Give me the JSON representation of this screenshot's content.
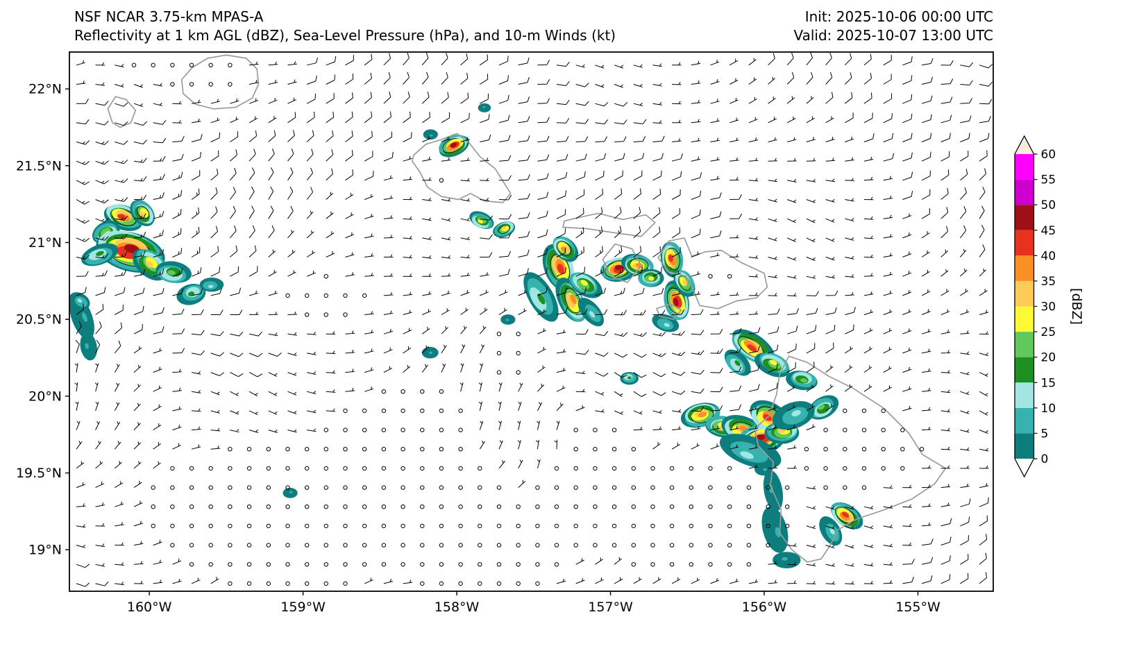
{
  "chart_data": {
    "type": "heatmap",
    "title": "NSF NCAR 3.75-km MPAS-A",
    "subtitle": "Reflectivity at 1 km AGL (dBZ), Sea-Level Pressure (hPa), and 10-m Winds (kt)",
    "init_label": "Init: 2025-10-06 00:00 UTC",
    "valid_label": "Valid: 2025-10-07 13:00 UTC",
    "xlim": [
      -160.52,
      -154.51
    ],
    "ylim": [
      18.73,
      22.24
    ],
    "x_ticks": [
      {
        "value": -160,
        "label": "160°W"
      },
      {
        "value": -159,
        "label": "159°W"
      },
      {
        "value": -158,
        "label": "158°W"
      },
      {
        "value": -157,
        "label": "157°W"
      },
      {
        "value": -156,
        "label": "156°W"
      },
      {
        "value": -155,
        "label": "155°W"
      }
    ],
    "y_ticks": [
      {
        "value": 22,
        "label": "22°N"
      },
      {
        "value": 21.5,
        "label": "21.5°N"
      },
      {
        "value": 21,
        "label": "21°N"
      },
      {
        "value": 20.5,
        "label": "20.5°N"
      },
      {
        "value": 20,
        "label": "20°N"
      },
      {
        "value": 19.5,
        "label": "19.5°N"
      },
      {
        "value": 19,
        "label": "19°N"
      }
    ],
    "coast_color": "#9b9b9b",
    "colorbar": {
      "label": "[dBZ]",
      "tick_values": [
        60,
        55,
        50,
        45,
        40,
        35,
        30,
        25,
        20,
        15,
        10,
        5,
        0
      ],
      "over_color": "#f6ecd9",
      "under_color": "#ffffff",
      "segments": [
        {
          "from": 0,
          "to": 5,
          "color": "#0e7d7d"
        },
        {
          "from": 5,
          "to": 10,
          "color": "#36b3ae"
        },
        {
          "from": 10,
          "to": 15,
          "color": "#a1e6e2"
        },
        {
          "from": 15,
          "to": 20,
          "color": "#1e8f22"
        },
        {
          "from": 20,
          "to": 25,
          "color": "#61c95c"
        },
        {
          "from": 25,
          "to": 30,
          "color": "#fdf935"
        },
        {
          "from": 30,
          "to": 35,
          "color": "#fecb59"
        },
        {
          "from": 35,
          "to": 40,
          "color": "#fb8f24"
        },
        {
          "from": 40,
          "to": 45,
          "color": "#e9311f"
        },
        {
          "from": 45,
          "to": 50,
          "color": "#9f1016"
        },
        {
          "from": 50,
          "to": 55,
          "color": "#cf00cf"
        },
        {
          "from": 55,
          "to": 60,
          "color": "#ff00ff"
        }
      ]
    },
    "islands": {
      "kauai": [
        [
          -159.78,
          21.97
        ],
        [
          -159.79,
          22.06
        ],
        [
          -159.72,
          22.14
        ],
        [
          -159.62,
          22.2
        ],
        [
          -159.5,
          22.22
        ],
        [
          -159.37,
          22.2
        ],
        [
          -159.3,
          22.13
        ],
        [
          -159.29,
          22.03
        ],
        [
          -159.33,
          21.94
        ],
        [
          -159.44,
          21.88
        ],
        [
          -159.58,
          21.87
        ],
        [
          -159.7,
          21.9
        ]
      ],
      "niihau": [
        [
          -160.24,
          21.78
        ],
        [
          -160.27,
          21.87
        ],
        [
          -160.22,
          21.95
        ],
        [
          -160.15,
          21.93
        ],
        [
          -160.09,
          21.86
        ],
        [
          -160.12,
          21.78
        ],
        [
          -160.19,
          21.75
        ]
      ],
      "oahu": [
        [
          -158.28,
          21.57
        ],
        [
          -158.2,
          21.64
        ],
        [
          -158.1,
          21.67
        ],
        [
          -158.0,
          21.71
        ],
        [
          -157.92,
          21.65
        ],
        [
          -157.85,
          21.56
        ],
        [
          -157.75,
          21.48
        ],
        [
          -157.65,
          21.32
        ],
        [
          -157.7,
          21.26
        ],
        [
          -157.82,
          21.27
        ],
        [
          -157.91,
          21.32
        ],
        [
          -157.99,
          21.28
        ],
        [
          -158.1,
          21.3
        ],
        [
          -158.19,
          21.36
        ],
        [
          -158.24,
          21.46
        ],
        [
          -158.29,
          21.53
        ]
      ],
      "molokai": [
        [
          -157.31,
          21.1
        ],
        [
          -157.15,
          21.09
        ],
        [
          -156.95,
          21.06
        ],
        [
          -156.8,
          21.04
        ],
        [
          -156.71,
          21.13
        ],
        [
          -156.77,
          21.18
        ],
        [
          -156.92,
          21.15
        ],
        [
          -157.08,
          21.19
        ],
        [
          -157.22,
          21.16
        ],
        [
          -157.3,
          21.14
        ]
      ],
      "lanai": [
        [
          -157.05,
          20.89
        ],
        [
          -156.97,
          20.99
        ],
        [
          -156.86,
          20.96
        ],
        [
          -156.8,
          20.85
        ],
        [
          -156.89,
          20.74
        ],
        [
          -157.0,
          20.78
        ]
      ],
      "kahoolawe": [
        [
          -156.7,
          20.57
        ],
        [
          -156.61,
          20.6
        ],
        [
          -156.54,
          20.56
        ],
        [
          -156.59,
          20.5
        ],
        [
          -156.68,
          20.52
        ]
      ],
      "maui": [
        [
          -156.69,
          20.9
        ],
        [
          -156.62,
          21.01
        ],
        [
          -156.52,
          21.03
        ],
        [
          -156.47,
          20.91
        ],
        [
          -156.38,
          20.94
        ],
        [
          -156.28,
          20.95
        ],
        [
          -156.15,
          20.87
        ],
        [
          -156.0,
          20.8
        ],
        [
          -155.98,
          20.71
        ],
        [
          -156.05,
          20.64
        ],
        [
          -156.18,
          20.62
        ],
        [
          -156.3,
          20.57
        ],
        [
          -156.42,
          20.59
        ],
        [
          -156.46,
          20.69
        ],
        [
          -156.51,
          20.78
        ],
        [
          -156.62,
          20.81
        ]
      ],
      "big_island": [
        [
          -155.84,
          20.26
        ],
        [
          -155.72,
          20.22
        ],
        [
          -155.58,
          20.13
        ],
        [
          -155.42,
          20.05
        ],
        [
          -155.22,
          19.92
        ],
        [
          -155.06,
          19.76
        ],
        [
          -154.97,
          19.62
        ],
        [
          -154.82,
          19.53
        ],
        [
          -154.89,
          19.43
        ],
        [
          -155.04,
          19.33
        ],
        [
          -155.22,
          19.26
        ],
        [
          -155.4,
          19.2
        ],
        [
          -155.52,
          19.13
        ],
        [
          -155.57,
          19.03
        ],
        [
          -155.63,
          18.94
        ],
        [
          -155.72,
          18.92
        ],
        [
          -155.82,
          19.0
        ],
        [
          -155.9,
          19.11
        ],
        [
          -155.89,
          19.26
        ],
        [
          -155.96,
          19.42
        ],
        [
          -155.94,
          19.57
        ],
        [
          -156.04,
          19.68
        ],
        [
          -156.06,
          19.79
        ],
        [
          -155.97,
          19.87
        ],
        [
          -155.92,
          20.01
        ],
        [
          -155.9,
          20.14
        ]
      ]
    },
    "storm_cells": [
      {
        "lon": -160.17,
        "lat": 21.17,
        "dbz": 43,
        "size": 0.1,
        "elong": 1.3,
        "angle": 20
      },
      {
        "lon": -160.28,
        "lat": 21.06,
        "dbz": 30,
        "size": 0.08,
        "elong": 1.2,
        "angle": -30
      },
      {
        "lon": -160.13,
        "lat": 20.95,
        "dbz": 48,
        "size": 0.17,
        "elong": 1.35,
        "angle": 15
      },
      {
        "lon": -160.04,
        "lat": 21.19,
        "dbz": 35,
        "size": 0.08,
        "elong": 1.2,
        "angle": 50
      },
      {
        "lon": -160.33,
        "lat": 20.92,
        "dbz": 18,
        "size": 0.09,
        "elong": 1.4,
        "angle": -20
      },
      {
        "lon": -159.99,
        "lat": 20.86,
        "dbz": 32,
        "size": 0.1,
        "elong": 1.3,
        "angle": 40
      },
      {
        "lon": -159.85,
        "lat": 20.8,
        "dbz": 24,
        "size": 0.09,
        "elong": 1.3,
        "angle": 10
      },
      {
        "lon": -159.72,
        "lat": 20.67,
        "dbz": 20,
        "size": 0.08,
        "elong": 1.2,
        "angle": -15
      },
      {
        "lon": -159.6,
        "lat": 20.72,
        "dbz": 12,
        "size": 0.06,
        "elong": 1.3,
        "angle": 0
      },
      {
        "lon": -160.43,
        "lat": 20.52,
        "dbz": 9,
        "size": 0.1,
        "elong": 1.5,
        "angle": 70
      },
      {
        "lon": -160.4,
        "lat": 20.32,
        "dbz": 8,
        "size": 0.07,
        "elong": 1.3,
        "angle": 80
      },
      {
        "lon": -160.45,
        "lat": 20.62,
        "dbz": 12,
        "size": 0.06,
        "elong": 1.2,
        "angle": 30
      },
      {
        "lon": -158.02,
        "lat": 21.63,
        "dbz": 46,
        "size": 0.08,
        "elong": 1.3,
        "angle": -25
      },
      {
        "lon": -158.17,
        "lat": 21.7,
        "dbz": 10,
        "size": 0.04,
        "elong": 1.2,
        "angle": 0
      },
      {
        "lon": -157.82,
        "lat": 21.88,
        "dbz": 9,
        "size": 0.035,
        "elong": 1.2,
        "angle": 0
      },
      {
        "lon": -157.84,
        "lat": 21.14,
        "dbz": 30,
        "size": 0.065,
        "elong": 1.3,
        "angle": 25
      },
      {
        "lon": -157.69,
        "lat": 21.09,
        "dbz": 33,
        "size": 0.06,
        "elong": 1.25,
        "angle": -20
      },
      {
        "lon": -157.46,
        "lat": 20.64,
        "dbz": 16,
        "size": 0.12,
        "elong": 1.5,
        "angle": 60
      },
      {
        "lon": -157.33,
        "lat": 20.84,
        "dbz": 43,
        "size": 0.12,
        "elong": 1.3,
        "angle": 70
      },
      {
        "lon": -157.3,
        "lat": 20.96,
        "dbz": 36,
        "size": 0.08,
        "elong": 1.2,
        "angle": 45
      },
      {
        "lon": -157.25,
        "lat": 20.62,
        "dbz": 39,
        "size": 0.11,
        "elong": 1.4,
        "angle": 65
      },
      {
        "lon": -157.17,
        "lat": 20.73,
        "dbz": 26,
        "size": 0.09,
        "elong": 1.3,
        "angle": 30
      },
      {
        "lon": -157.12,
        "lat": 20.54,
        "dbz": 13,
        "size": 0.08,
        "elong": 1.4,
        "angle": 50
      },
      {
        "lon": -156.95,
        "lat": 20.83,
        "dbz": 46,
        "size": 0.095,
        "elong": 1.25,
        "angle": -10
      },
      {
        "lon": -156.82,
        "lat": 20.85,
        "dbz": 38,
        "size": 0.085,
        "elong": 1.25,
        "angle": 15
      },
      {
        "lon": -156.74,
        "lat": 20.77,
        "dbz": 26,
        "size": 0.07,
        "elong": 1.2,
        "angle": 0
      },
      {
        "lon": -156.6,
        "lat": 20.89,
        "dbz": 41,
        "size": 0.09,
        "elong": 1.3,
        "angle": 80
      },
      {
        "lon": -156.57,
        "lat": 20.62,
        "dbz": 46,
        "size": 0.1,
        "elong": 1.3,
        "angle": 75
      },
      {
        "lon": -156.52,
        "lat": 20.74,
        "dbz": 31,
        "size": 0.075,
        "elong": 1.25,
        "angle": 60
      },
      {
        "lon": -156.64,
        "lat": 20.47,
        "dbz": 13,
        "size": 0.07,
        "elong": 1.3,
        "angle": 20
      },
      {
        "lon": -156.88,
        "lat": 20.12,
        "dbz": 16,
        "size": 0.05,
        "elong": 1.2,
        "angle": 0
      },
      {
        "lon": -158.17,
        "lat": 20.28,
        "dbz": 10,
        "size": 0.045,
        "elong": 1.2,
        "angle": 0
      },
      {
        "lon": -157.67,
        "lat": 20.5,
        "dbz": 8,
        "size": 0.04,
        "elong": 1.2,
        "angle": 0
      },
      {
        "lon": -159.08,
        "lat": 19.37,
        "dbz": 10,
        "size": 0.04,
        "elong": 1.2,
        "angle": 0
      },
      {
        "lon": -156.08,
        "lat": 20.32,
        "dbz": 41,
        "size": 0.11,
        "elong": 1.45,
        "angle": 35
      },
      {
        "lon": -155.94,
        "lat": 20.21,
        "dbz": 26,
        "size": 0.09,
        "elong": 1.35,
        "angle": 25
      },
      {
        "lon": -156.18,
        "lat": 20.21,
        "dbz": 16,
        "size": 0.08,
        "elong": 1.3,
        "angle": 45
      },
      {
        "lon": -155.75,
        "lat": 20.11,
        "dbz": 21,
        "size": 0.08,
        "elong": 1.3,
        "angle": 10
      },
      {
        "lon": -155.62,
        "lat": 19.92,
        "dbz": 23,
        "size": 0.085,
        "elong": 1.25,
        "angle": -30
      },
      {
        "lon": -156.41,
        "lat": 19.88,
        "dbz": 38,
        "size": 0.1,
        "elong": 1.3,
        "angle": -15
      },
      {
        "lon": -156.27,
        "lat": 19.8,
        "dbz": 31,
        "size": 0.09,
        "elong": 1.3,
        "angle": 10
      },
      {
        "lon": -156.14,
        "lat": 19.78,
        "dbz": 36,
        "size": 0.11,
        "elong": 1.3,
        "angle": 20
      },
      {
        "lon": -156.02,
        "lat": 19.72,
        "dbz": 49,
        "size": 0.12,
        "elong": 1.3,
        "angle": -10
      },
      {
        "lon": -155.97,
        "lat": 19.86,
        "dbz": 41,
        "size": 0.11,
        "elong": 1.25,
        "angle": 30
      },
      {
        "lon": -155.88,
        "lat": 19.77,
        "dbz": 31,
        "size": 0.09,
        "elong": 1.25,
        "angle": 0
      },
      {
        "lon": -156.1,
        "lat": 19.63,
        "dbz": 11,
        "size": 0.14,
        "elong": 1.5,
        "angle": 20
      },
      {
        "lon": -155.8,
        "lat": 19.88,
        "dbz": 13,
        "size": 0.11,
        "elong": 1.3,
        "angle": -20
      },
      {
        "lon": -155.47,
        "lat": 19.22,
        "dbz": 41,
        "size": 0.09,
        "elong": 1.3,
        "angle": 35
      },
      {
        "lon": -155.56,
        "lat": 19.12,
        "dbz": 11,
        "size": 0.08,
        "elong": 1.3,
        "angle": 60
      },
      {
        "lon": -155.95,
        "lat": 19.39,
        "dbz": 7,
        "size": 0.09,
        "elong": 1.5,
        "angle": 80
      },
      {
        "lon": -155.92,
        "lat": 19.12,
        "dbz": 8,
        "size": 0.11,
        "elong": 1.4,
        "angle": 75
      },
      {
        "lon": -155.86,
        "lat": 18.94,
        "dbz": 7,
        "size": 0.07,
        "elong": 1.3,
        "angle": 0
      },
      {
        "lon": -156.0,
        "lat": 19.52,
        "dbz": 6,
        "size": 0.05,
        "elong": 1.2,
        "angle": 0
      }
    ],
    "wind": {
      "units": "kt",
      "grid_step": 0.125,
      "calm_threshold_kt": 2.5,
      "base": {
        "u": -8.5,
        "v": -2.2
      },
      "mod": {
        "amp_u": 0.38,
        "amp_v": 0.5,
        "swirl": 0.65
      },
      "vortices": [
        {
          "lon": -157.35,
          "lat": 20.02,
          "r": 0.42,
          "s": 26
        },
        {
          "lon": -159.95,
          "lat": 21.95,
          "r": 0.45,
          "s": -14
        },
        {
          "lon": -156.35,
          "lat": 19.75,
          "r": 0.5,
          "s": 12
        },
        {
          "lon": -160.1,
          "lat": 20.6,
          "r": 0.4,
          "s": 10
        }
      ],
      "calm_zones": [
        {
          "lon": -159.05,
          "lat": 19.25,
          "rx": 0.95,
          "ry": 0.55,
          "a": 0.97
        },
        {
          "lon": -158.35,
          "lat": 19.7,
          "rx": 0.5,
          "ry": 0.45,
          "a": 0.9
        },
        {
          "lon": -158.9,
          "lat": 20.62,
          "rx": 0.32,
          "ry": 0.2,
          "a": 0.93
        },
        {
          "lon": -157.62,
          "lat": 20.32,
          "rx": 0.3,
          "ry": 0.28,
          "a": 0.88
        },
        {
          "lon": -157.7,
          "lat": 18.95,
          "rx": 0.55,
          "ry": 0.3,
          "a": 0.92
        },
        {
          "lon": -155.35,
          "lat": 19.68,
          "rx": 0.6,
          "ry": 0.42,
          "a": 0.95
        },
        {
          "lon": -156.28,
          "lat": 20.74,
          "rx": 0.33,
          "ry": 0.2,
          "a": 0.88
        },
        {
          "lon": -159.6,
          "lat": 22.08,
          "rx": 0.32,
          "ry": 0.2,
          "a": 0.85
        },
        {
          "lon": -158.08,
          "lat": 21.45,
          "rx": 0.22,
          "ry": 0.18,
          "a": 0.8
        },
        {
          "lon": -156.55,
          "lat": 19.1,
          "rx": 0.4,
          "ry": 0.3,
          "a": 0.85
        }
      ]
    }
  }
}
